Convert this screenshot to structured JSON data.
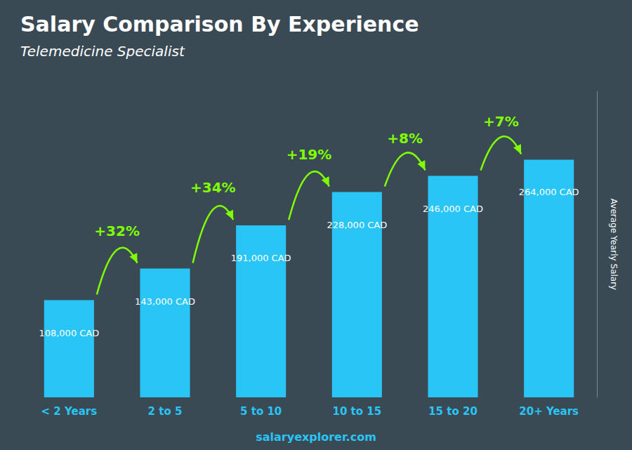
{
  "chart_data": {
    "type": "bar",
    "title": "Salary Comparison By Experience",
    "subtitle": "Telemedicine Specialist",
    "ylabel": "Average Yearly Salary",
    "footer": "salaryexplorer.com",
    "categories": [
      "< 2 Years",
      "2 to 5",
      "5 to 10",
      "10 to 15",
      "15 to 20",
      "20+ Years"
    ],
    "values": [
      108000,
      143000,
      191000,
      228000,
      246000,
      264000
    ],
    "value_labels": [
      "108,000 CAD",
      "143,000 CAD",
      "191,000 CAD",
      "228,000 CAD",
      "246,000 CAD",
      "264,000 CAD"
    ],
    "data_labels": true,
    "annotations": [
      "+32%",
      "+34%",
      "+19%",
      "+8%",
      "+7%"
    ],
    "color": "#29c5f6",
    "ylim": [
      0,
      340000
    ],
    "grid": false,
    "tick_labels": "x"
  }
}
